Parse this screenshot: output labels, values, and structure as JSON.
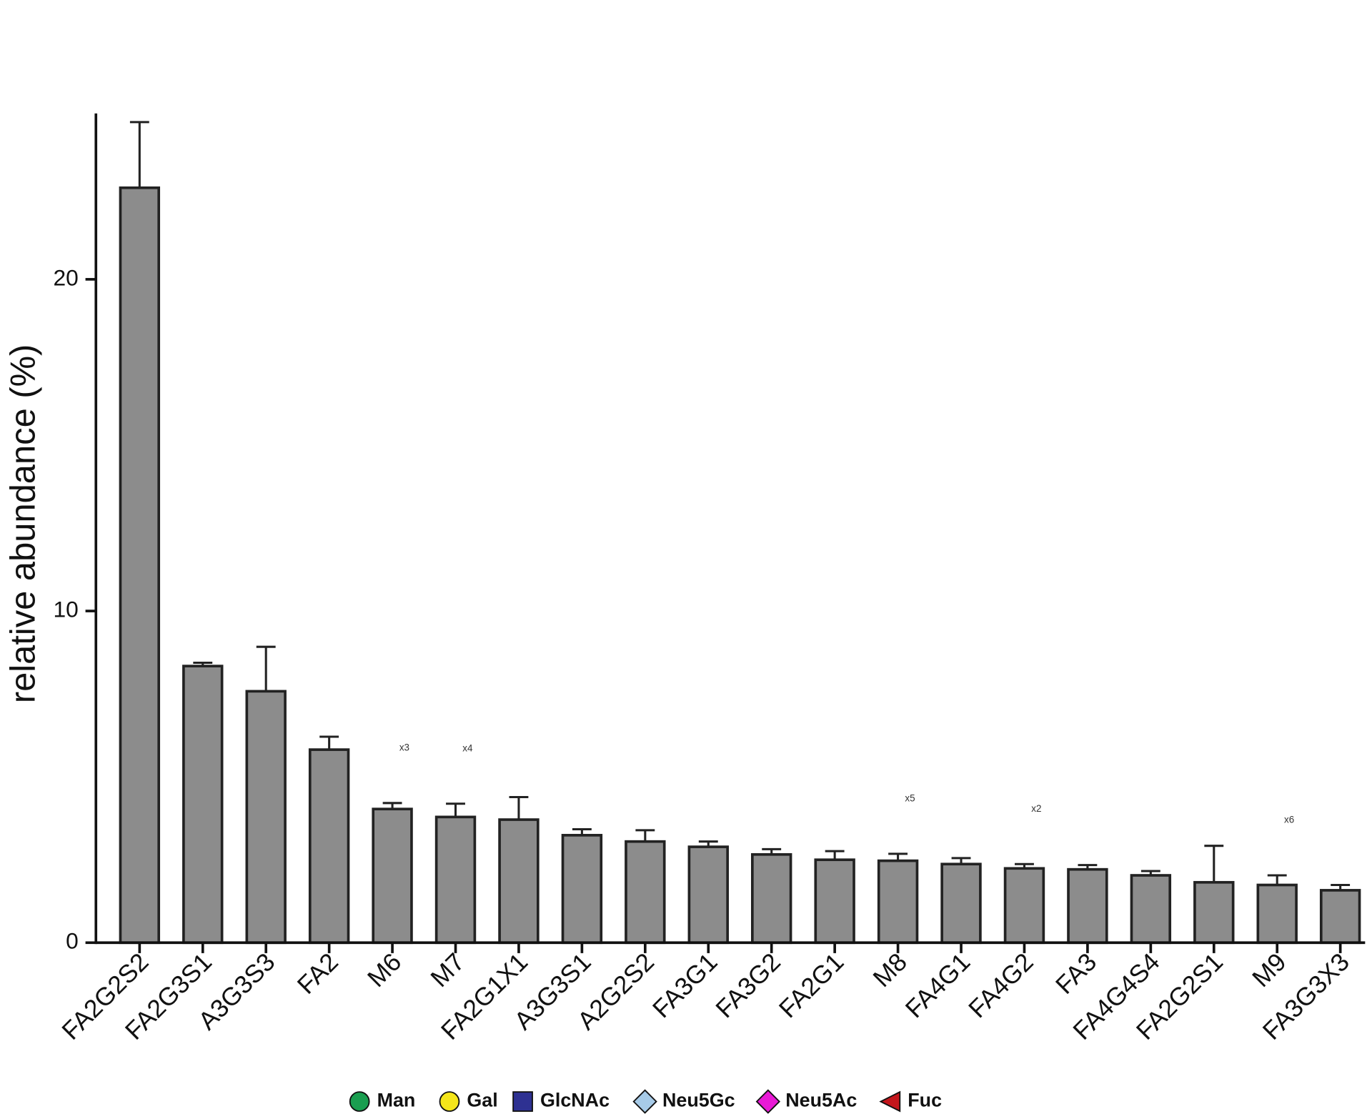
{
  "chart_data": {
    "type": "bar",
    "y_label": "relative abundance (%)",
    "categories": [
      "FA2G2S2",
      "FA2G3S1",
      "A3G3S3",
      "FA2",
      "M6",
      "M7",
      "FA2G1X1",
      "A3G3S1",
      "A2G2S2",
      "FA3G1",
      "FA3G2",
      "FA2G1",
      "M8",
      "FA4G1",
      "FA4G2",
      "FA3",
      "FA4G4S4",
      "FA2G2S1",
      "M9",
      "FA3G3X3"
    ],
    "values": [
      22.76,
      8.34,
      7.58,
      5.82,
      4.03,
      3.79,
      3.71,
      3.24,
      3.05,
      2.89,
      2.66,
      2.5,
      2.47,
      2.37,
      2.24,
      2.21,
      2.03,
      1.82,
      1.74,
      1.58
    ],
    "errors": [
      1.98,
      0.1,
      1.34,
      0.39,
      0.18,
      0.4,
      0.68,
      0.18,
      0.34,
      0.16,
      0.16,
      0.26,
      0.21,
      0.18,
      0.13,
      0.13,
      0.13,
      1.1,
      0.29,
      0.16
    ],
    "multipliers": [
      null,
      null,
      null,
      null,
      "x3",
      "x4",
      null,
      null,
      null,
      null,
      null,
      null,
      "x5",
      null,
      "x2",
      null,
      null,
      null,
      "x6",
      null
    ],
    "color": "#8c8c8c",
    "ylim": [
      0,
      25
    ],
    "yticks": [
      0,
      10,
      20
    ],
    "legend": [
      {
        "name": "Man",
        "color": "#1a9e50",
        "shape": "circle"
      },
      {
        "name": "Gal",
        "color": "#f5e61a",
        "shape": "circle"
      },
      {
        "name": "GlcNAc",
        "color": "#2e3192",
        "shape": "square"
      },
      {
        "name": "Neu5Gc",
        "color": "#a7cbe8",
        "shape": "diamond"
      },
      {
        "name": "Neu5Ac",
        "color": "#e91ad6",
        "shape": "diamond"
      },
      {
        "name": "Fuc",
        "color": "#c4161c",
        "shape": "triangle"
      }
    ]
  }
}
